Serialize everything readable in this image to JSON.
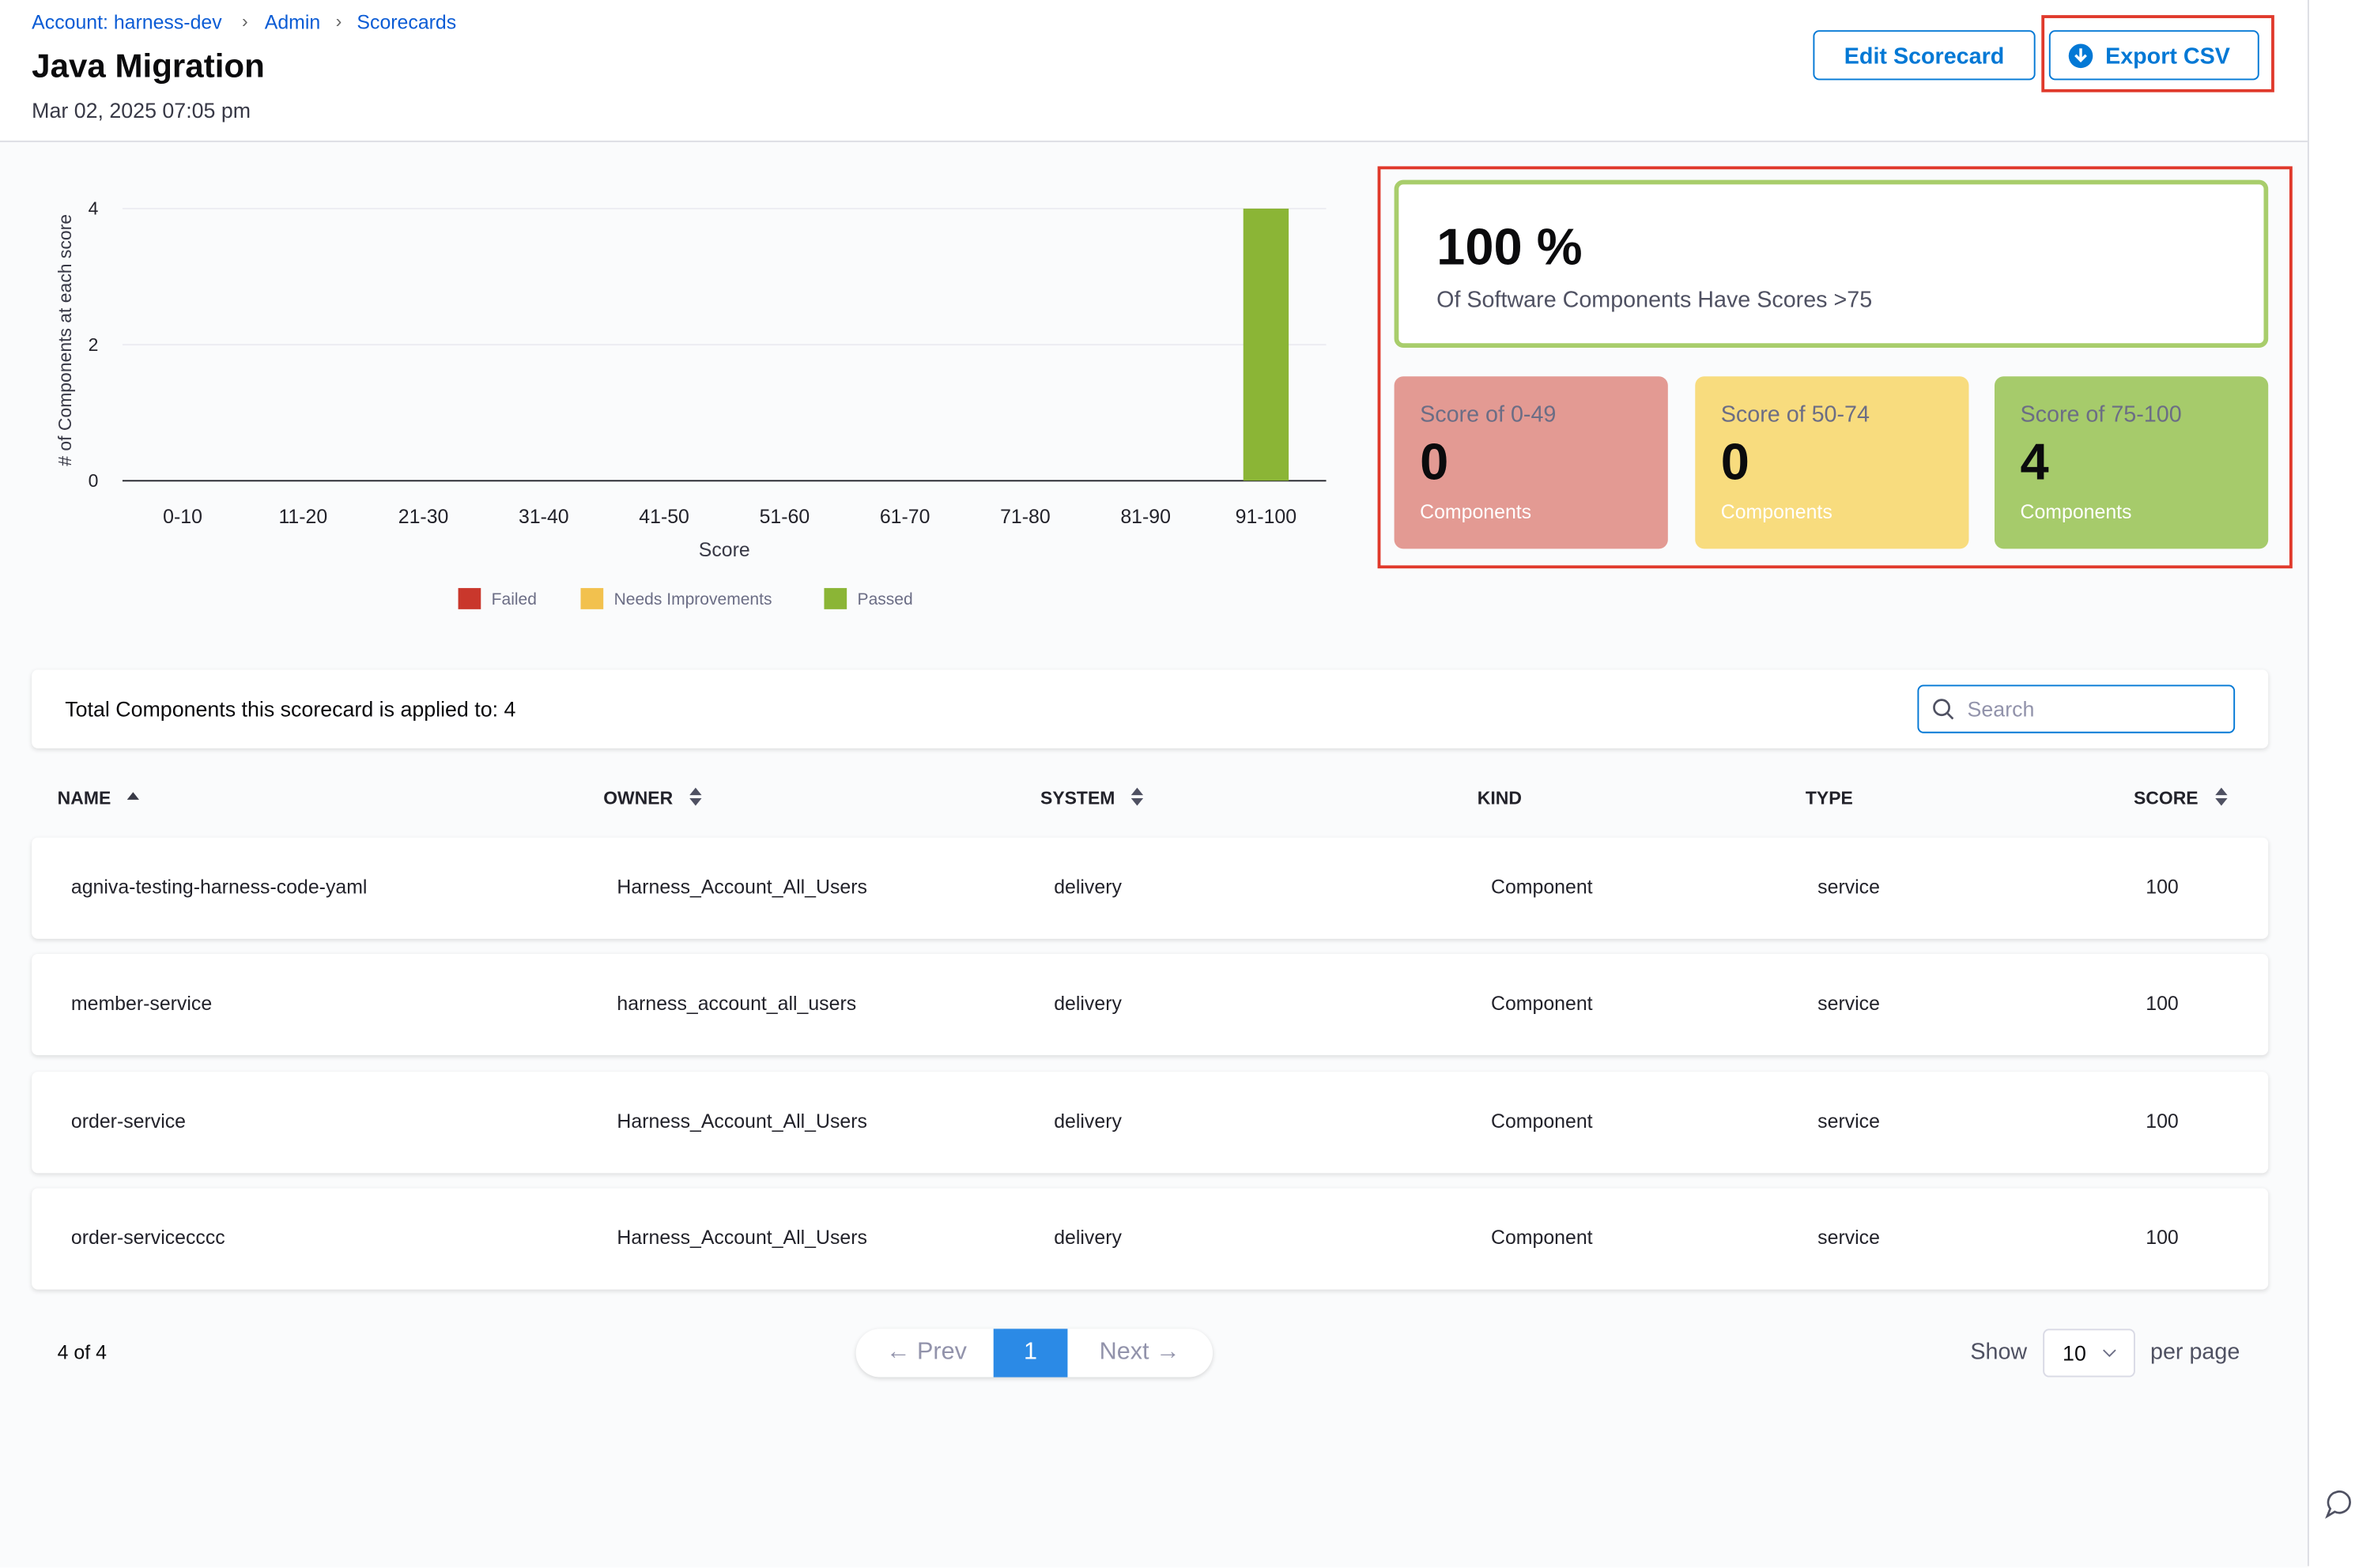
{
  "breadcrumbs": [
    "Account: harness-dev",
    "Admin",
    "Scorecards"
  ],
  "header": {
    "title": "Java Migration",
    "timestamp": "Mar 02, 2025 07:05 pm",
    "buttons": [
      "Edit Scorecard",
      "Export CSV"
    ]
  },
  "chart_data": {
    "type": "bar",
    "x_label": "Score",
    "y_label": "# of Components at each score",
    "categories": [
      "0-10",
      "11-20",
      "21-30",
      "31-40",
      "41-50",
      "51-60",
      "61-70",
      "71-80",
      "81-90",
      "91-100"
    ],
    "series": [
      {
        "name": "Failed",
        "color": "#c9372c",
        "values": [
          0,
          0,
          0,
          0,
          0,
          0,
          0,
          0,
          0,
          0
        ]
      },
      {
        "name": "Needs Improvements",
        "color": "#f2c14e",
        "values": [
          0,
          0,
          0,
          0,
          0,
          0,
          0,
          0,
          0,
          0
        ]
      },
      {
        "name": "Passed",
        "color": "#8bb536",
        "values": [
          0,
          0,
          0,
          0,
          0,
          0,
          0,
          0,
          0,
          4
        ]
      }
    ],
    "ylim": [
      0,
      4
    ],
    "yticks": [
      0,
      2,
      4
    ],
    "grid": true
  },
  "summary": {
    "percent": "100 %",
    "caption": "Of Software Components Have Scores >75",
    "cards": [
      {
        "label": "Score of 0-49",
        "count": "0",
        "unit": "Components"
      },
      {
        "label": "Score of 50-74",
        "count": "0",
        "unit": "Components"
      },
      {
        "label": "Score of 75-100",
        "count": "4",
        "unit": "Components"
      }
    ]
  },
  "table": {
    "total": "Total Components this scorecard is applied to: 4",
    "search_placeholder": "Search",
    "columns": [
      "NAME",
      "OWNER",
      "SYSTEM",
      "KIND",
      "TYPE",
      "SCORE"
    ],
    "rows": [
      [
        "agniva-testing-harness-code-yaml",
        "Harness_Account_All_Users",
        "delivery",
        "Component",
        "service",
        "100"
      ],
      [
        "member-service",
        "harness_account_all_users",
        "delivery",
        "Component",
        "service",
        "100"
      ],
      [
        "order-service",
        "Harness_Account_All_Users",
        "delivery",
        "Component",
        "service",
        "100"
      ],
      [
        "order-servicecccc",
        "Harness_Account_All_Users",
        "delivery",
        "Component",
        "service",
        "100"
      ]
    ]
  },
  "footer": {
    "count": "4 of 4",
    "prev": "Prev",
    "page": "1",
    "next": "Next",
    "show": "Show",
    "page_size": "10",
    "per_page": "per page"
  }
}
